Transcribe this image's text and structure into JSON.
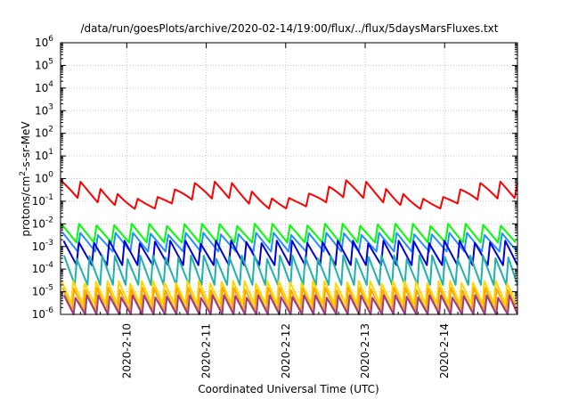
{
  "chart_data": {
    "type": "line",
    "title": "/data/run/goesPlots/archive/2020-02-14/19:00/flux/../flux/5daysMarsFluxes.txt",
    "xlabel": "Coordinated Universal Time (UTC)",
    "ylabel": "protons/cm2-s-sr-MeV",
    "ylabel_base": "protons/cm",
    "ylabel_sup": "2",
    "ylabel_rest": "-s-sr-MeV",
    "yscale": "log",
    "ylim": [
      1e-06,
      1000000.0
    ],
    "xlim": [
      "2020-02-09 04:00",
      "2020-02-14 22:00"
    ],
    "x_tick_labels": [
      "2020-2-10",
      "2020-2-11",
      "2020-2-12",
      "2020-2-13",
      "2020-2-14"
    ],
    "y_tick_labels": [
      {
        "base": "10",
        "exp": "-6"
      },
      {
        "base": "10",
        "exp": "-5"
      },
      {
        "base": "10",
        "exp": "-4"
      },
      {
        "base": "10",
        "exp": "-3"
      },
      {
        "base": "10",
        "exp": "-2"
      },
      {
        "base": "10",
        "exp": "-1"
      },
      {
        "base": "10",
        "exp": "0"
      },
      {
        "base": "10",
        "exp": "1"
      },
      {
        "base": "10",
        "exp": "2"
      },
      {
        "base": "10",
        "exp": "3"
      },
      {
        "base": "10",
        "exp": "4"
      },
      {
        "base": "10",
        "exp": "5"
      },
      {
        "base": "10",
        "exp": "6"
      }
    ],
    "grid": true,
    "legend": "none",
    "series": [
      {
        "color": "#ff0000",
        "pattern": "smooth",
        "low": 0.04,
        "high": 0.9,
        "teeth": 24,
        "phase": 0.0
      },
      {
        "color": "#00ff00",
        "pattern": "sawtooth",
        "low": 0.0015,
        "high": 0.01,
        "teeth": 26,
        "phase": 0.1
      },
      {
        "color": "#1e90ff",
        "pattern": "sawtooth",
        "low": 0.0006,
        "high": 0.004,
        "teeth": 26,
        "phase": 0.25
      },
      {
        "color": "#0000dd",
        "pattern": "sawtooth",
        "low": 0.00015,
        "high": 0.0018,
        "teeth": 30,
        "phase": 0.4
      },
      {
        "color": "#20b2aa",
        "pattern": "sawtooth",
        "low": 2e-05,
        "high": 0.0004,
        "teeth": 36,
        "phase": 0.55
      },
      {
        "color": "#ffd700",
        "pattern": "sawtooth",
        "low": 3e-06,
        "high": 3e-05,
        "teeth": 40,
        "phase": 0.2
      },
      {
        "color": "#ffa500",
        "pattern": "sawtooth",
        "low": 1.5e-06,
        "high": 1.5e-05,
        "teeth": 40,
        "phase": 0.35
      },
      {
        "color": "#9b3a87",
        "pattern": "sawtooth",
        "low": 8e-07,
        "high": 7e-06,
        "teeth": 40,
        "phase": 0.6
      }
    ]
  }
}
